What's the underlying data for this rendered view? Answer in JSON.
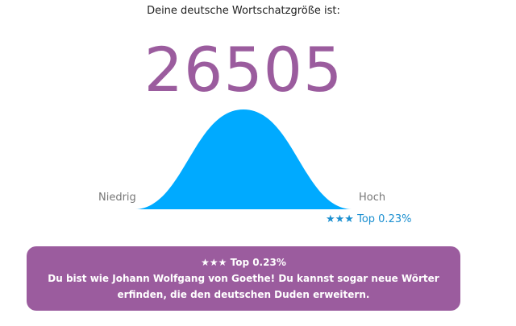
{
  "intro": "Deine deutsche Wortschatzgröße ist:",
  "score": "26505",
  "scale": {
    "low_label": "Niedrig",
    "high_label": "Hoch"
  },
  "rank_label": "★★★ Top 0.23%",
  "result": {
    "title": "★★★ Top 0.23%",
    "line1": "Du bist wie Johann Wolfgang von Goethe! Du kannst sogar neue Wörter",
    "line2": "erfinden, die den deutschen Duden erweitern."
  },
  "colors": {
    "accent": "#9b5c9e",
    "curve": "#00aaff",
    "rank": "#1a8fd0"
  },
  "icons": {
    "curve": "bell-curve-icon",
    "stars": "star-icon"
  }
}
